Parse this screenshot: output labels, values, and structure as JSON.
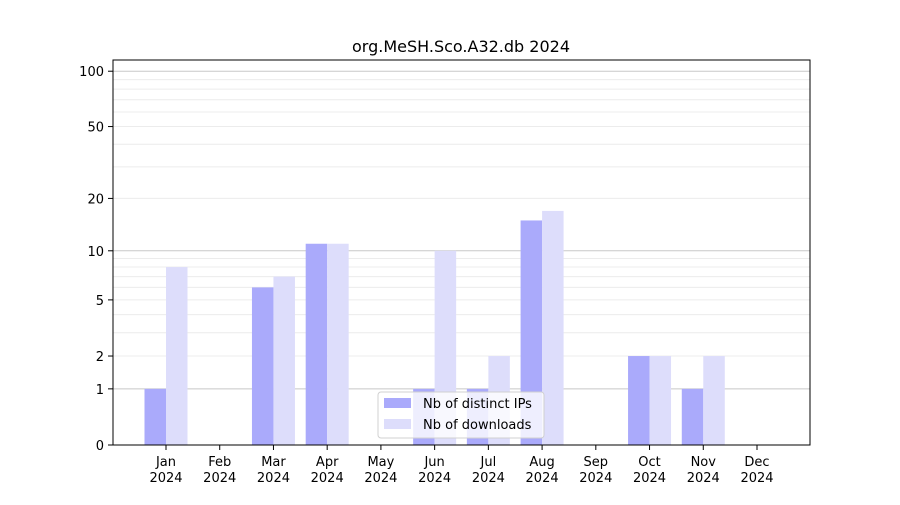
{
  "chart_data": {
    "type": "bar",
    "title": "org.MeSH.Sco.A32.db 2024",
    "xlabel": "",
    "ylabel": "",
    "yscale": "log1p",
    "ylim": [
      0,
      115
    ],
    "yticks": [
      0,
      1,
      2,
      5,
      10,
      20,
      50,
      100
    ],
    "grid": true,
    "legend_placement": "bottom-center",
    "categories": [
      "Jan\n2024",
      "Feb\n2024",
      "Mar\n2024",
      "Apr\n2024",
      "May\n2024",
      "Jun\n2024",
      "Jul\n2024",
      "Aug\n2024",
      "Sep\n2024",
      "Oct\n2024",
      "Nov\n2024",
      "Dec\n2024"
    ],
    "series": [
      {
        "name": "Nb of distinct IPs",
        "color": "#aaaafb",
        "values": [
          1,
          0,
          6,
          11,
          0,
          1,
          1,
          15,
          0,
          2,
          1,
          0
        ]
      },
      {
        "name": "Nb of downloads",
        "color": "#ddddfb",
        "values": [
          8,
          0,
          7,
          11,
          0,
          10,
          2,
          17,
          0,
          2,
          2,
          0
        ]
      }
    ]
  }
}
